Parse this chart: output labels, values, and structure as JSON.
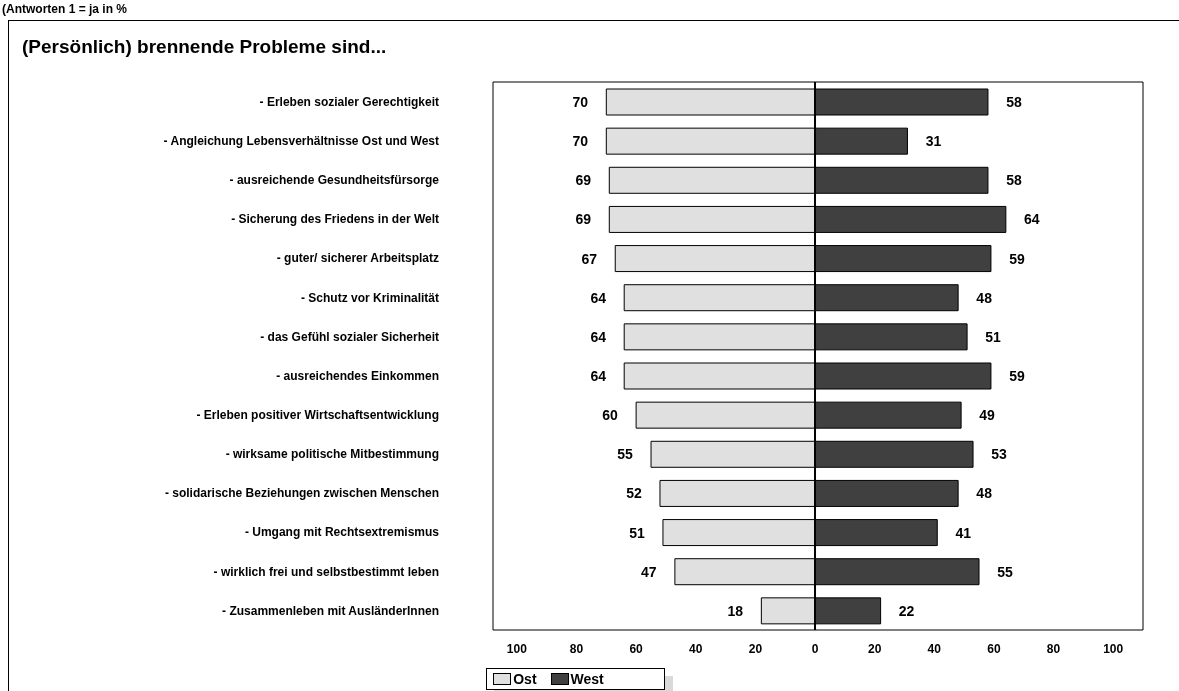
{
  "chart_data": {
    "type": "bar",
    "orientation": "horizontal",
    "title": "(Persönlich) brennende Probleme sind...",
    "annotations": [
      "(Antworten 1 = ja in %"
    ],
    "categories": [
      "- Erleben sozialer Gerechtigkeit",
      "- Angleichung Lebensverhältnisse Ost und West",
      "- ausreichende Gesundheitsfürsorge",
      "- Sicherung des Friedens in der Welt",
      "- guter/ sicherer Arbeitsplatz",
      "- Schutz vor Kriminalität",
      "- das Gefühl sozialer Sicherheit",
      "- ausreichendes Einkommen",
      "- Erleben positiver Wirtschaftsentwicklung",
      "- wirksame politische Mitbestimmung",
      "- solidarische Beziehungen zwischen Menschen",
      "- Umgang mit Rechtsextremismus",
      "- wirklich frei und selbstbestimmt leben",
      "- Zusammenleben mit AusländerInnen"
    ],
    "series": [
      {
        "name": "Ost",
        "color": "#e0e0e0",
        "values": [
          70,
          70,
          69,
          69,
          67,
          64,
          64,
          64,
          60,
          55,
          52,
          51,
          47,
          18
        ],
        "base": [
          -70,
          -70,
          -69,
          -69,
          -67,
          -64,
          -64,
          -64,
          -60,
          -55,
          -52,
          -51,
          -47,
          -18
        ]
      },
      {
        "name": "West",
        "color": "#404040",
        "values": [
          58,
          31,
          58,
          64,
          59,
          48,
          51,
          59,
          49,
          53,
          48,
          41,
          55,
          22
        ]
      }
    ],
    "data_labels": true,
    "xlim": [
      -108,
      110
    ],
    "xticks": [
      {
        "value": -100,
        "label": "100"
      },
      {
        "value": -80,
        "label": "80"
      },
      {
        "value": -60,
        "label": "60"
      },
      {
        "value": -40,
        "label": "40"
      },
      {
        "value": -20,
        "label": "20"
      },
      0,
      20,
      40,
      60,
      80,
      100
    ],
    "ref_lines": [
      {
        "axis": "x",
        "value": 0,
        "color": "#000000"
      }
    ],
    "legend": "bottom"
  }
}
